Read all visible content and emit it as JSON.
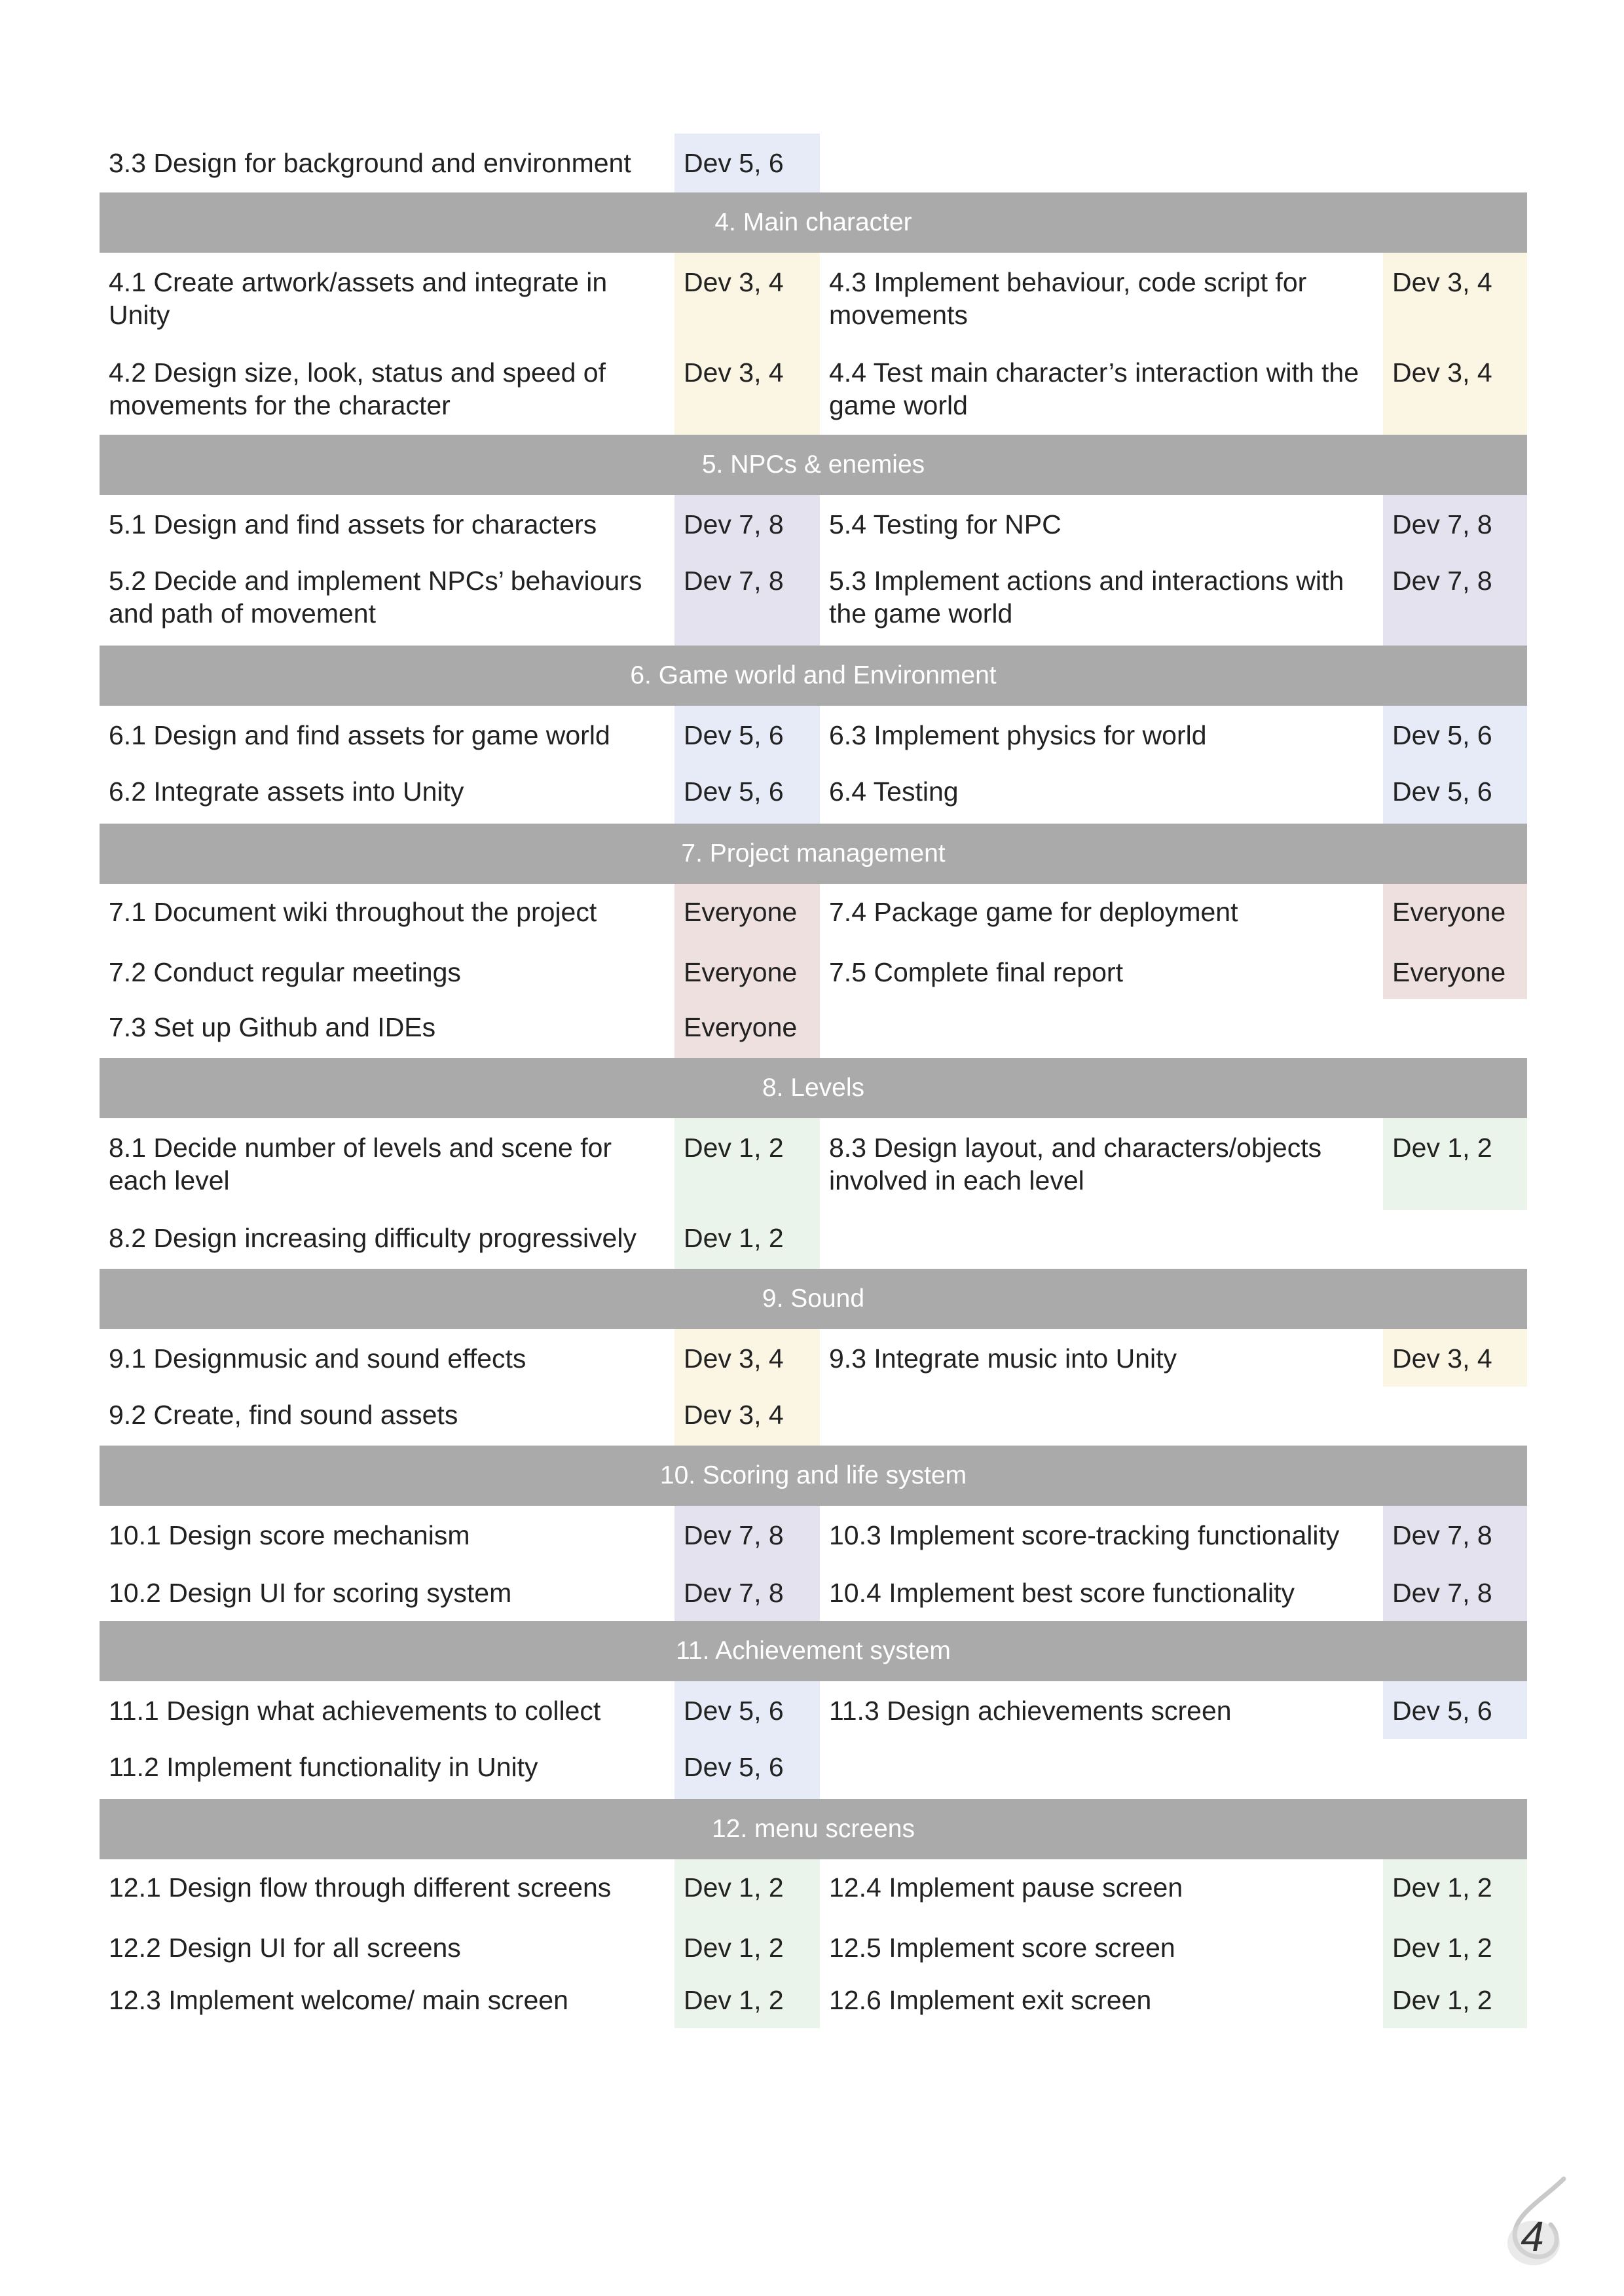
{
  "colors": {
    "header_bg": "#aaaaaa",
    "dev_5_6": "#e6ebf7",
    "dev_3_4": "#fbf5e3",
    "dev_7_8": "#e5e2ef",
    "everyone": "#ede0df",
    "dev_1_2": "#ebf4ea"
  },
  "rows": [
    {
      "type": "task",
      "h": 90,
      "pad": 20,
      "l": {
        "t": "3.3 Design for background and environment",
        "a": "Dev 5, 6",
        "c": "blue"
      }
    },
    {
      "type": "header",
      "h": 92,
      "title": "4. Main character"
    },
    {
      "type": "task",
      "h": 140,
      "pad": 20,
      "l": {
        "t": "4.1 Create artwork/assets and integrate in Unity",
        "a": "Dev 3, 4",
        "c": "yellow"
      },
      "r": {
        "t": "4.3 Implement behaviour, code script for movements",
        "a": "Dev 3, 4",
        "c": "yellow"
      }
    },
    {
      "type": "task",
      "h": 138,
      "pad": 18,
      "l": {
        "t": "4.2 Design size, look, status and speed of movements for the character",
        "a": "Dev 3, 4",
        "c": "yellow"
      },
      "r": {
        "t": "4.4 Test main character’s interaction with the game world",
        "a": "Dev 3, 4",
        "c": "yellow"
      }
    },
    {
      "type": "header",
      "h": 92,
      "title": "5. NPCs & enemies"
    },
    {
      "type": "task",
      "h": 88,
      "pad": 20,
      "l": {
        "t": "5.1 Design and find assets for characters",
        "a": "Dev 7, 8",
        "c": "purple"
      },
      "r": {
        "t": "5.4 Testing for NPC",
        "a": "Dev 7, 8",
        "c": "purple"
      }
    },
    {
      "type": "task",
      "h": 142,
      "pad": 18,
      "l": {
        "t": "5.2 Decide and implement NPCs’ behaviours and path of movement",
        "a": "Dev 7, 8",
        "c": "purple"
      },
      "r": {
        "t": "5.3 Implement actions and interactions with the game world",
        "a": "Dev 7, 8",
        "c": "purple"
      }
    },
    {
      "type": "header",
      "h": 92,
      "title": "6. Game world and Environment"
    },
    {
      "type": "task",
      "h": 88,
      "pad": 20,
      "l": {
        "t": "6.1 Design and find assets for game world",
        "a": "Dev 5, 6",
        "c": "blue"
      },
      "r": {
        "t": "6.3 Implement physics for world",
        "a": "Dev 5, 6",
        "c": "blue"
      }
    },
    {
      "type": "task",
      "h": 92,
      "pad": 18,
      "l": {
        "t": "6.2 Integrate assets into Unity",
        "a": "Dev 5, 6",
        "c": "blue"
      },
      "r": {
        "t": "6.4 Testing",
        "a": "Dev 5, 6",
        "c": "blue"
      }
    },
    {
      "type": "header",
      "h": 92,
      "title": "7. Project management"
    },
    {
      "type": "task",
      "h": 90,
      "pad": 18,
      "l": {
        "t": "7.1 Document wiki throughout the project",
        "a": "Everyone",
        "c": "pink"
      },
      "r": {
        "t": "7.4 Package game for deployment",
        "a": "Everyone",
        "c": "pink"
      }
    },
    {
      "type": "task",
      "h": 86,
      "pad": 20,
      "l": {
        "t": "7.2 Conduct regular meetings",
        "a": "Everyone",
        "c": "pink"
      },
      "r": {
        "t": "7.5 Complete final report",
        "a": "Everyone",
        "c": "pink"
      }
    },
    {
      "type": "task",
      "h": 90,
      "pad": 18,
      "l": {
        "t": "7.3 Set up Github and IDEs",
        "a": "Everyone",
        "c": "pink"
      }
    },
    {
      "type": "header",
      "h": 92,
      "title": "8. Levels"
    },
    {
      "type": "task",
      "h": 140,
      "pad": 20,
      "l": {
        "t": "8.1 Decide number of levels and scene for each level",
        "a": "Dev 1, 2",
        "c": "green"
      },
      "r": {
        "t": "8.3 Design layout, and characters/objects involved in each level",
        "a": "Dev 1, 2",
        "c": "green"
      }
    },
    {
      "type": "task",
      "h": 90,
      "pad": 18,
      "l": {
        "t": "8.2 Design increasing difficulty progressively",
        "a": "Dev 1, 2",
        "c": "green"
      }
    },
    {
      "type": "header",
      "h": 92,
      "title": "9. Sound"
    },
    {
      "type": "task",
      "h": 88,
      "pad": 20,
      "l": {
        "t": "9.1 Designmusic and sound effects",
        "a": "Dev 3, 4",
        "c": "yellow"
      },
      "r": {
        "t": "9.3 Integrate music into Unity",
        "a": "Dev 3, 4",
        "c": "yellow"
      }
    },
    {
      "type": "task",
      "h": 90,
      "pad": 18,
      "l": {
        "t": "9.2 Create, find sound assets",
        "a": "Dev 3, 4",
        "c": "yellow"
      }
    },
    {
      "type": "header",
      "h": 92,
      "title": "10. Scoring and life system"
    },
    {
      "type": "task",
      "h": 90,
      "pad": 20,
      "l": {
        "t": "10.1 Design score mechanism",
        "a": "Dev 7, 8",
        "c": "purple"
      },
      "r": {
        "t": "10.3 Implement score-tracking functionality",
        "a": "Dev 7, 8",
        "c": "purple"
      }
    },
    {
      "type": "task",
      "h": 86,
      "pad": 18,
      "l": {
        "t": "10.2 Design UI for scoring system",
        "a": "Dev 7, 8",
        "c": "purple"
      },
      "r": {
        "t": "10.4 Implement best score functionality",
        "a": "Dev 7, 8",
        "c": "purple"
      }
    },
    {
      "type": "header",
      "h": 92,
      "title": "11. Achievement system"
    },
    {
      "type": "task",
      "h": 88,
      "pad": 20,
      "l": {
        "t": "11.1 Design what achievements to collect",
        "a": "Dev 5, 6",
        "c": "blue"
      },
      "r": {
        "t": "11.3 Design achievements screen",
        "a": "Dev 5, 6",
        "c": "blue"
      }
    },
    {
      "type": "task",
      "h": 92,
      "pad": 18,
      "l": {
        "t": "11.2 Implement functionality in Unity",
        "a": "Dev 5, 6",
        "c": "blue"
      }
    },
    {
      "type": "header",
      "h": 92,
      "title": "12. menu screens"
    },
    {
      "type": "task",
      "h": 90,
      "pad": 18,
      "l": {
        "t": "12.1 Design flow through different screens",
        "a": "Dev 1, 2",
        "c": "green"
      },
      "r": {
        "t": "12.4 Implement pause screen",
        "a": "Dev 1, 2",
        "c": "green"
      }
    },
    {
      "type": "task",
      "h": 86,
      "pad": 20,
      "l": {
        "t": "12.2 Design UI for all screens",
        "a": "Dev 1, 2",
        "c": "green"
      },
      "r": {
        "t": "12.5 Implement score screen",
        "a": "Dev 1, 2",
        "c": "green"
      }
    },
    {
      "type": "task",
      "h": 82,
      "pad": 14,
      "l": {
        "t": "12.3 Implement welcome/ main screen",
        "a": "Dev 1, 2",
        "c": "green"
      },
      "r": {
        "t": "12.6 Implement exit screen",
        "a": "Dev 1, 2",
        "c": "green"
      }
    }
  ],
  "page_number": "4"
}
